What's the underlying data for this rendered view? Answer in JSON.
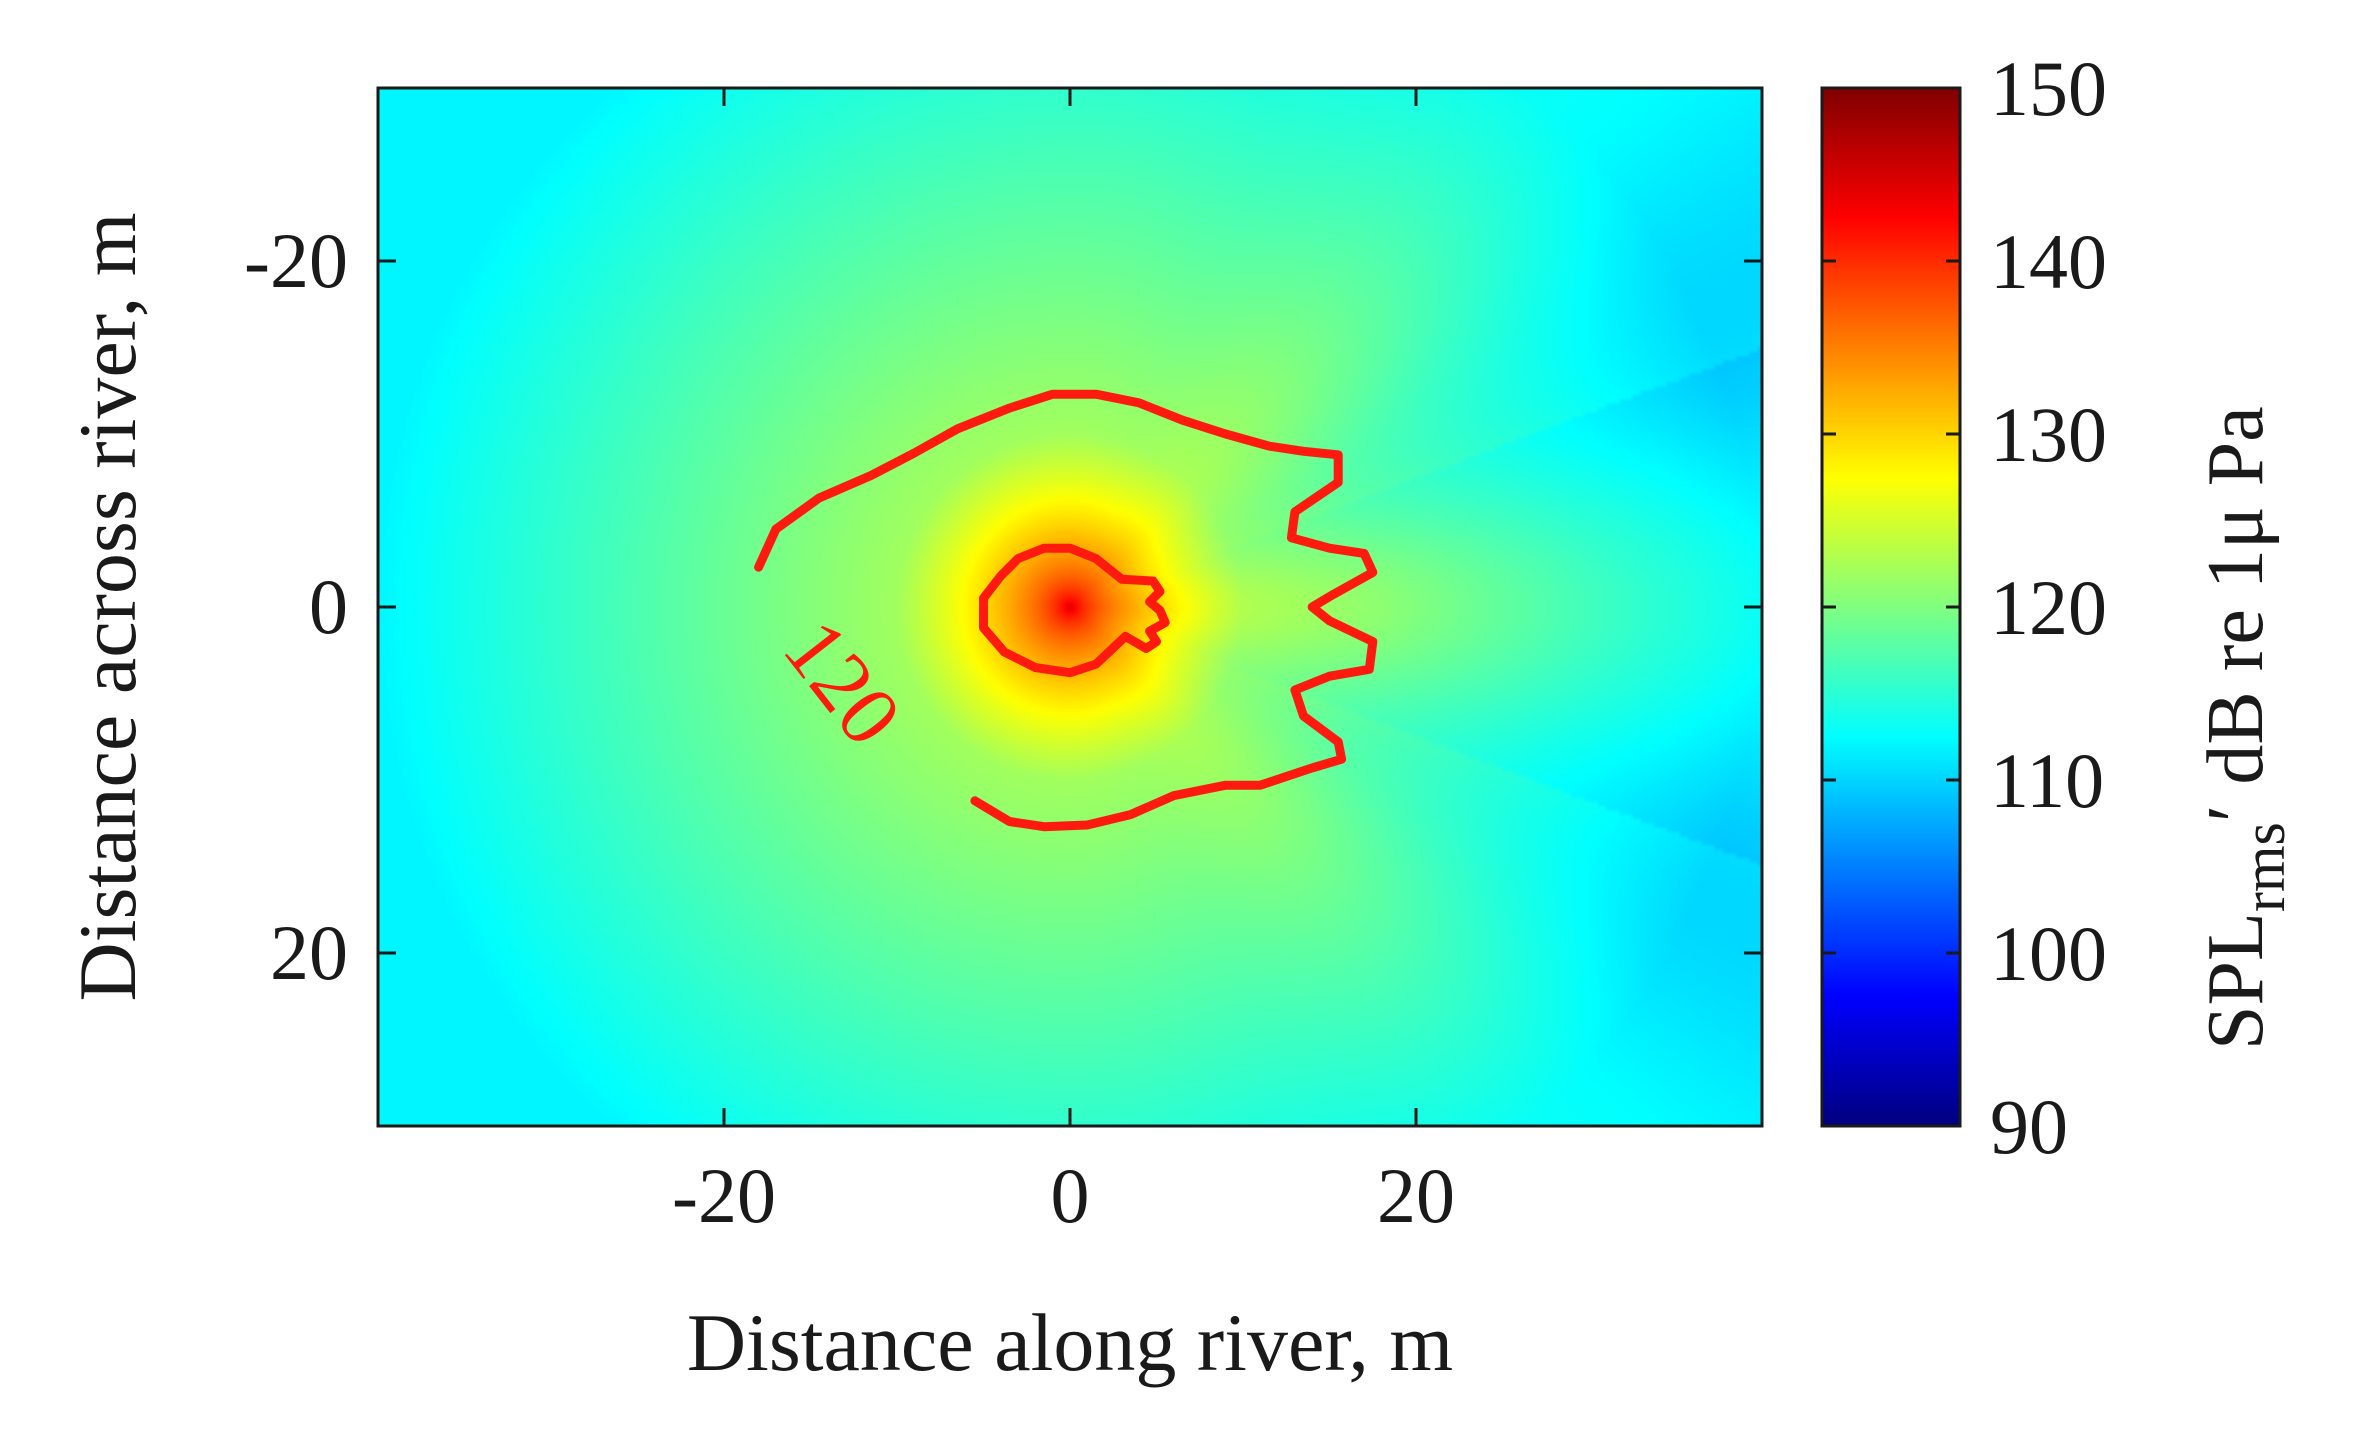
{
  "chart_data": {
    "type": "heatmap",
    "title": "",
    "xlabel": "Distance along river, m",
    "ylabel": "Distance across river, m",
    "xlim": [
      -40,
      40
    ],
    "ylim": [
      -30,
      30
    ],
    "y_reversed": true,
    "xticks": [
      -20,
      0,
      20
    ],
    "yticks": [
      -20,
      0,
      20
    ],
    "x_tick_labels": [
      "-20",
      "0",
      "20"
    ],
    "y_tick_labels": [
      "-20",
      "0",
      "20"
    ],
    "colormap": "jet",
    "colorbar": {
      "range": [
        90,
        150
      ],
      "ticks": [
        90,
        100,
        110,
        120,
        130,
        140,
        150
      ],
      "tick_labels": [
        "90",
        "100",
        "110",
        "120",
        "130",
        "140",
        "150"
      ],
      "label_main": "SPL",
      "label_sub": "rms",
      "label_rest": "′ dB re 1μ Pa",
      "placement": "right"
    },
    "field": {
      "description_values": "approximate sound pressure level in dB re 1 μPa",
      "source_location": [
        0,
        0
      ],
      "peak_level": 146,
      "level_at_10m": 122,
      "level_at_edges": 112
    },
    "contours": [
      {
        "level": 120,
        "label": "120",
        "color": "#ff1a10",
        "points": [
          [
            -18,
            -2.3
          ],
          [
            -17,
            -4.5
          ],
          [
            -14.5,
            -6.3
          ],
          [
            -11.5,
            -7.6
          ],
          [
            -9,
            -8.9
          ],
          [
            -6.5,
            -10.3
          ],
          [
            -3.5,
            -11.5
          ],
          [
            -1,
            -12.3
          ],
          [
            1.5,
            -12.3
          ],
          [
            4,
            -11.8
          ],
          [
            6.5,
            -10.8
          ],
          [
            9,
            -10
          ],
          [
            11.5,
            -9.3
          ],
          [
            13.5,
            -9
          ],
          [
            15.5,
            -8.8
          ],
          [
            15.5,
            -7.2
          ],
          [
            13,
            -5.5
          ],
          [
            12.8,
            -4
          ],
          [
            15,
            -3.4
          ],
          [
            17,
            -3.1
          ],
          [
            17.5,
            -2
          ],
          [
            15,
            -0.6
          ],
          [
            14,
            0
          ],
          [
            15,
            0.8
          ],
          [
            17.5,
            2
          ],
          [
            17.3,
            3.6
          ],
          [
            15,
            4
          ],
          [
            13,
            4.8
          ],
          [
            13.5,
            6.3
          ],
          [
            15.5,
            7.8
          ],
          [
            15.7,
            8.8
          ],
          [
            14,
            9.3
          ],
          [
            12.5,
            9.8
          ],
          [
            11,
            10.3
          ],
          [
            9,
            10.3
          ],
          [
            6,
            10.9
          ],
          [
            3.5,
            12
          ],
          [
            1,
            12.6
          ],
          [
            -1.5,
            12.7
          ],
          [
            -3.5,
            12.4
          ],
          [
            -5.5,
            11.2
          ]
        ]
      },
      {
        "level": 140,
        "label": "",
        "color": "#ff1a10",
        "points": [
          [
            -5,
            -0.5
          ],
          [
            -4,
            -1.8
          ],
          [
            -3,
            -2.8
          ],
          [
            -1.5,
            -3.4
          ],
          [
            0,
            -3.4
          ],
          [
            1.5,
            -2.8
          ],
          [
            3,
            -1.6
          ],
          [
            4.8,
            -1.5
          ],
          [
            5.2,
            -0.9
          ],
          [
            4.6,
            -0.3
          ],
          [
            5.2,
            0.2
          ],
          [
            5.5,
            0.9
          ],
          [
            4.6,
            1.4
          ],
          [
            5,
            2
          ],
          [
            4.4,
            2.4
          ],
          [
            3.2,
            1.7
          ],
          [
            1.5,
            3.3
          ],
          [
            0,
            3.8
          ],
          [
            -2,
            3.5
          ],
          [
            -3.8,
            2.6
          ],
          [
            -5,
            1.2
          ]
        ]
      }
    ]
  }
}
